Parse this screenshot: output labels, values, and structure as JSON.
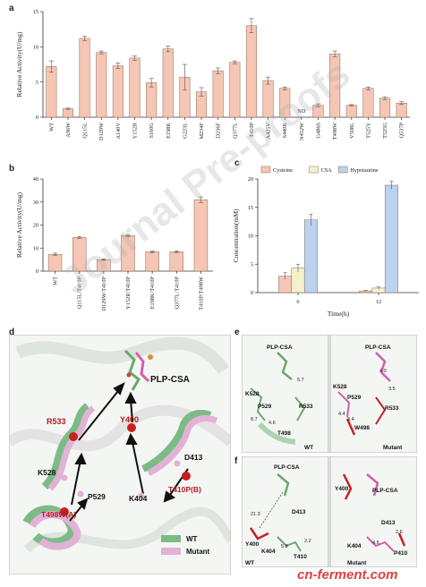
{
  "panels": {
    "a": "a",
    "b": "b",
    "c": "c",
    "d": "d",
    "e": "e",
    "f": "f"
  },
  "chart_data": [
    {
      "id": "a",
      "type": "bar",
      "ylabel": "Relative Activity(U/mg)",
      "ylim": [
        0,
        15
      ],
      "yticks": [
        0,
        5,
        10,
        15
      ],
      "categories": [
        "WT",
        "A96W",
        "Q115L",
        "D129W",
        "A140V",
        "Y152R",
        "S160G",
        "E198K",
        "G223L",
        "M234F",
        "D236F",
        "Q377L",
        "T410P",
        "A425V",
        "S440K",
        "N452W",
        "G486S",
        "T498W",
        "V508L",
        "T525Y",
        "T525G",
        "Q537P"
      ],
      "values": [
        7.2,
        1.2,
        11.2,
        9.2,
        7.3,
        8.4,
        4.9,
        9.7,
        5.7,
        3.6,
        6.6,
        7.8,
        13.0,
        5.2,
        4.1,
        null,
        1.7,
        9.0,
        1.7,
        4.1,
        2.7,
        2.0
      ],
      "errors": [
        0.8,
        0.1,
        0.3,
        0.2,
        0.4,
        0.3,
        0.6,
        0.4,
        1.8,
        0.6,
        0.4,
        0.2,
        1.0,
        0.5,
        0.2,
        null,
        0.2,
        0.4,
        0.1,
        0.2,
        0.2,
        0.2
      ],
      "annotations": [
        {
          "category": "N452W",
          "text": "ND"
        }
      ],
      "bar_color": "#f6c6b4"
    },
    {
      "id": "b",
      "type": "bar",
      "ylabel": "Relative Activity(U/mg)",
      "ylim": [
        0,
        40
      ],
      "yticks": [
        0,
        10,
        20,
        30,
        40
      ],
      "categories": [
        "WT",
        "Q115L/T410P",
        "D129W/T410P",
        "Y152R/T410P",
        "E198K/T410P",
        "Q377L/T410P",
        "T410P/T498W"
      ],
      "values": [
        7.3,
        14.6,
        5.0,
        15.4,
        8.4,
        8.4,
        31.0
      ],
      "errors": [
        0.5,
        0.4,
        0.3,
        0.4,
        0.4,
        0.4,
        1.2
      ],
      "bar_color": "#f6c6b4"
    },
    {
      "id": "c",
      "type": "bar",
      "ylabel": "Concentration(mM)",
      "xlabel": "Time(h)",
      "ylim": [
        0,
        20
      ],
      "yticks": [
        0,
        5,
        10,
        15,
        20
      ],
      "categories": [
        "6",
        "12"
      ],
      "series": [
        {
          "name": "Cysteine",
          "color": "#f6c6b4",
          "values": [
            2.9,
            0.3
          ],
          "errors": [
            0.6,
            0.1
          ]
        },
        {
          "name": "CSA",
          "color": "#f2f2cc",
          "values": [
            4.3,
            0.8
          ],
          "errors": [
            0.7,
            0.2
          ]
        },
        {
          "name": "Hypotaurine",
          "color": "#bcd2ee",
          "values": [
            12.8,
            18.9
          ],
          "errors": [
            1.0,
            0.7
          ]
        }
      ],
      "legend": "top"
    }
  ],
  "panel_d": {
    "labels": {
      "ligand": "PLP-CSA",
      "r533": "R533",
      "y400": "Y400",
      "d413": "D413",
      "k528": "K528",
      "p529": "P529",
      "k404": "K404",
      "t410": "T410P(B)",
      "t498": "T498W(A)"
    },
    "legend": {
      "wt": "WT",
      "mutant": "Mutant"
    },
    "colors": {
      "wt": "#7dbb86",
      "mutant": "#e2b2d6",
      "red": "#c62020"
    }
  },
  "panel_e": {
    "left": {
      "ligand": "PLP-CSA",
      "k528": "K528",
      "p529": "P529",
      "r533": "R533",
      "t498": "T498",
      "d1": "5.7",
      "d2": "8.7",
      "d3": "4.6",
      "tag": "WT"
    },
    "right": {
      "ligand": "PLP-CSA",
      "k528": "K528",
      "p529": "P529",
      "r533": "R533",
      "w498": "W498",
      "d1": "4.0",
      "d2": "3.5",
      "d3": "4.4",
      "d4": "3.4",
      "tag": "Mutant"
    }
  },
  "panel_f": {
    "left": {
      "ligand": "PLP-CSA",
      "y400": "Y400",
      "d413": "D413",
      "k404": "K404",
      "t410": "T410",
      "d1": "21.3",
      "d2": "5.8",
      "d3": "2.2",
      "tag": "WT"
    },
    "right": {
      "ligand": "PLP-CSA",
      "y400": "Y400",
      "d413": "D413",
      "k404": "K404",
      "p410": "P410",
      "d1": "4.5",
      "d2": "2.6",
      "tag": "Mutant"
    }
  },
  "watermarks": {
    "journal": "Journal Pre-proofs",
    "site": "cn-ferment.com"
  }
}
